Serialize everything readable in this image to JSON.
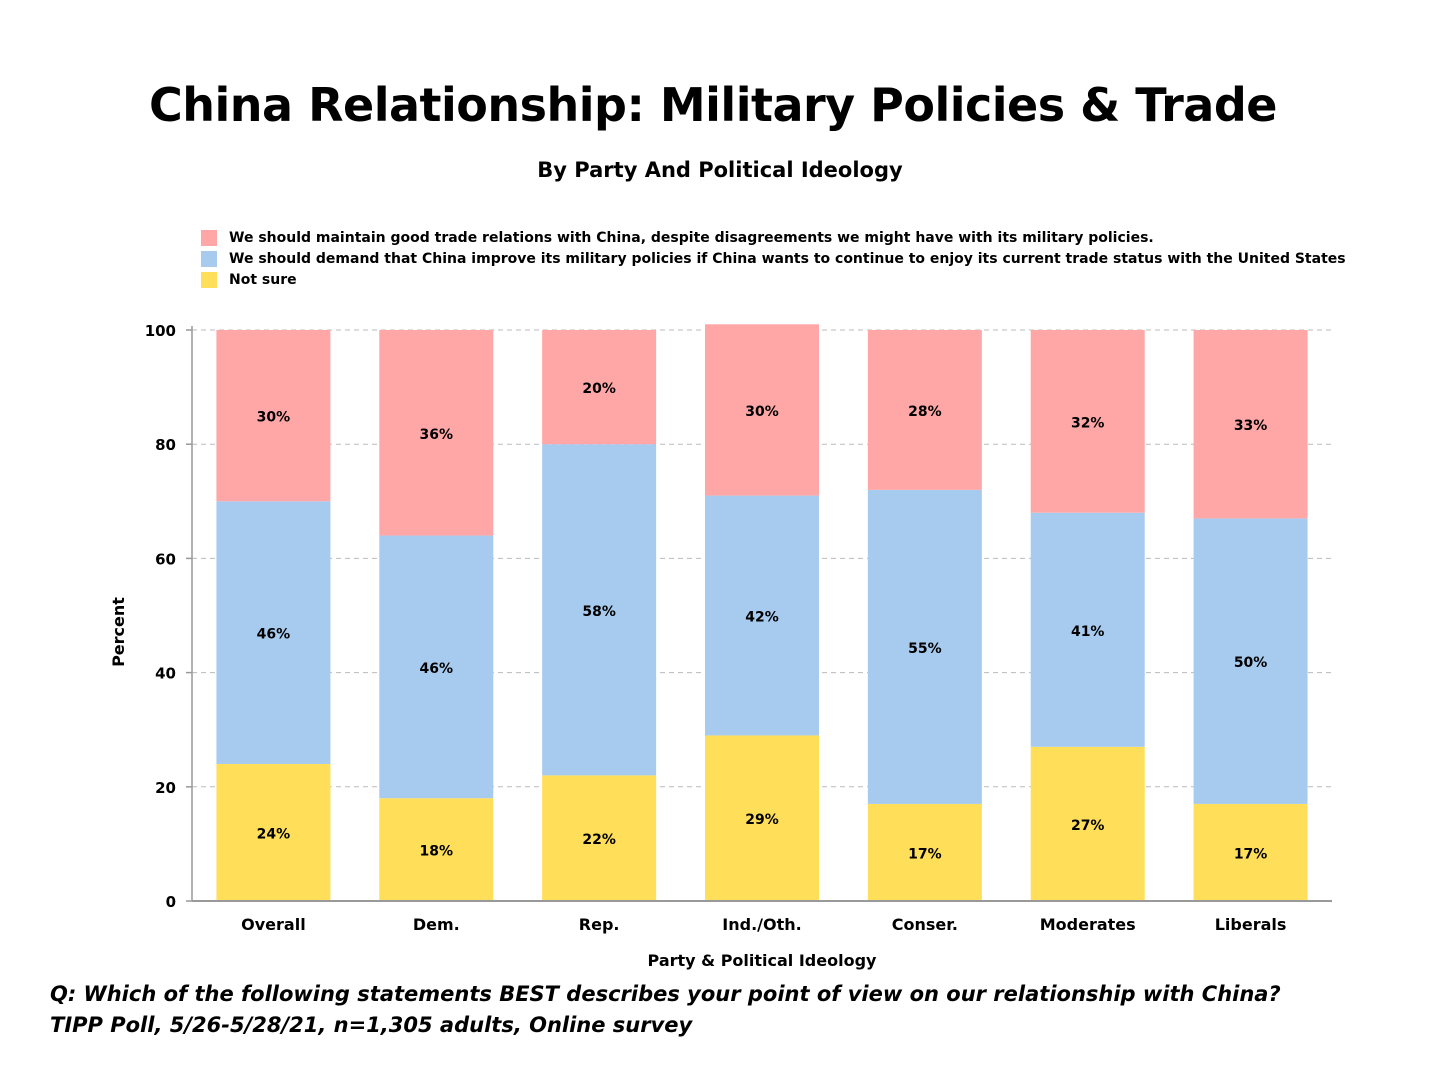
{
  "title": "China Relationship:  Military Policies & Trade",
  "subtitle": "By Party And Political Ideology",
  "colors": {
    "trade": "#ffa7a7",
    "demand": "#a7cbef",
    "not_sure": "#ffde59",
    "grid": "#bbbbbb",
    "axis": "#999999"
  },
  "legend": [
    {
      "key": "trade",
      "label": "We should maintain good trade relations with China, despite disagreements we might have with its military policies."
    },
    {
      "key": "demand",
      "label": "We should demand that China improve its military policies if China wants to continue to enjoy its current trade status with the United States"
    },
    {
      "key": "not_sure",
      "label": "Not sure"
    }
  ],
  "chart_data": {
    "type": "bar",
    "stacked": true,
    "title": "China Relationship:  Military Policies & Trade",
    "subtitle": "By Party And Political Ideology",
    "xlabel": "Party & Political Ideology",
    "ylabel": "Percent",
    "ylim": [
      0,
      100
    ],
    "yticks": [
      0,
      20,
      40,
      60,
      80,
      100
    ],
    "grid": true,
    "legend_position": "top-left",
    "categories": [
      "Overall",
      "Dem.",
      "Rep.",
      "Ind./Oth.",
      "Conser.",
      "Moderates",
      "Liberals"
    ],
    "series": [
      {
        "key": "not_sure",
        "name": "Not sure",
        "values": [
          24,
          18,
          22,
          29,
          17,
          27,
          17
        ],
        "labels": [
          "24%",
          "18%",
          "22%",
          "29%",
          "17%",
          "27%",
          "17%"
        ]
      },
      {
        "key": "demand",
        "name": "We should demand that China improve its military policies if China wants to continue to enjoy its current trade status with the United States",
        "values": [
          46,
          46,
          58,
          42,
          55,
          41,
          50
        ],
        "labels": [
          "46%",
          "46%",
          "58%",
          "42%",
          "55%",
          "41%",
          "50%"
        ]
      },
      {
        "key": "trade",
        "name": "We should maintain good trade relations with China, despite disagreements we might have with its military policies.",
        "values": [
          30,
          36,
          20,
          30,
          28,
          32,
          33
        ],
        "labels": [
          "30%",
          "36%",
          "20%",
          "30%",
          "28%",
          "32%",
          "33%"
        ]
      }
    ]
  },
  "notes": {
    "question": "Q:  Which of the following statements BEST describes your point of view on our relationship with China?",
    "source": "TIPP Poll, 5/26-5/28/21, n=1,305 adults, Online survey"
  }
}
